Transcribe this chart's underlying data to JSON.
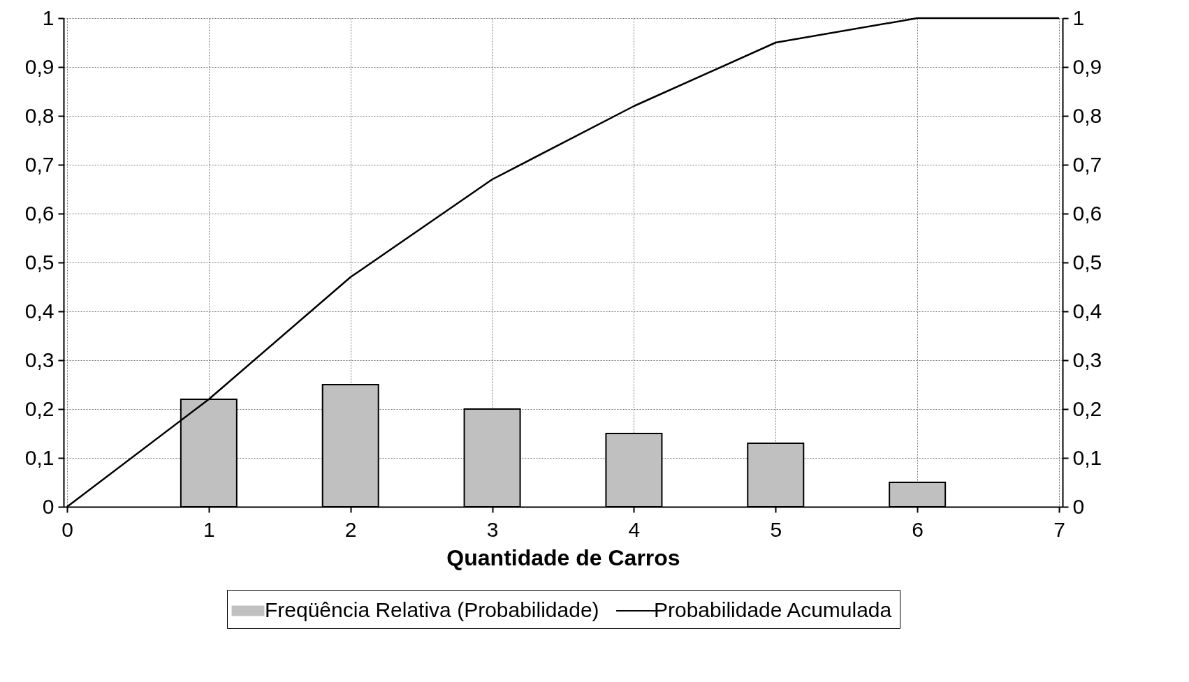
{
  "chart_data": {
    "type": "bar",
    "xlabel": "Quantidade de Carros",
    "series": [
      {
        "name": "Freqüência Relativa (Probabilidade)",
        "color": "#c0c0c0",
        "x": [
          1,
          2,
          3,
          4,
          5,
          6
        ],
        "values": [
          0.22,
          0.25,
          0.2,
          0.15,
          0.13,
          0.05
        ]
      },
      {
        "name": "Probabilidade Acumulada",
        "type": "line",
        "color": "#000000",
        "x": [
          0,
          1,
          2,
          3,
          4,
          5,
          6,
          7
        ],
        "values": [
          0,
          0.22,
          0.47,
          0.67,
          0.82,
          0.95,
          1,
          1
        ]
      }
    ],
    "xlim": [
      0,
      7
    ],
    "xticks": [
      0,
      1,
      2,
      3,
      4,
      5,
      6,
      7
    ],
    "ylim": [
      0,
      1
    ],
    "yticks": [
      0,
      {
        "value": 0.1,
        "label": "0,1"
      },
      {
        "value": 0.2,
        "label": "0,2"
      },
      {
        "value": 0.3,
        "label": "0,3"
      },
      {
        "value": 0.4,
        "label": "0,4"
      },
      {
        "value": 0.5,
        "label": "0,5"
      },
      {
        "value": 0.6,
        "label": "0,6"
      },
      {
        "value": 0.7,
        "label": "0,7"
      },
      {
        "value": 0.8,
        "label": "0,8"
      },
      {
        "value": 0.9,
        "label": "0,9"
      },
      1
    ],
    "y2lim": [
      0,
      1
    ],
    "y2ticks": [
      0,
      {
        "value": 0.1,
        "label": "0,1"
      },
      {
        "value": 0.2,
        "label": "0,2"
      },
      {
        "value": 0.3,
        "label": "0,3"
      },
      {
        "value": 0.4,
        "label": "0,4"
      },
      {
        "value": 0.5,
        "label": "0,5"
      },
      {
        "value": 0.6,
        "label": "0,6"
      },
      {
        "value": 0.7,
        "label": "0,7"
      },
      {
        "value": 0.8,
        "label": "0,8"
      },
      {
        "value": 0.9,
        "label": "0,9"
      },
      1
    ],
    "grid": true,
    "legend": "bottom"
  }
}
